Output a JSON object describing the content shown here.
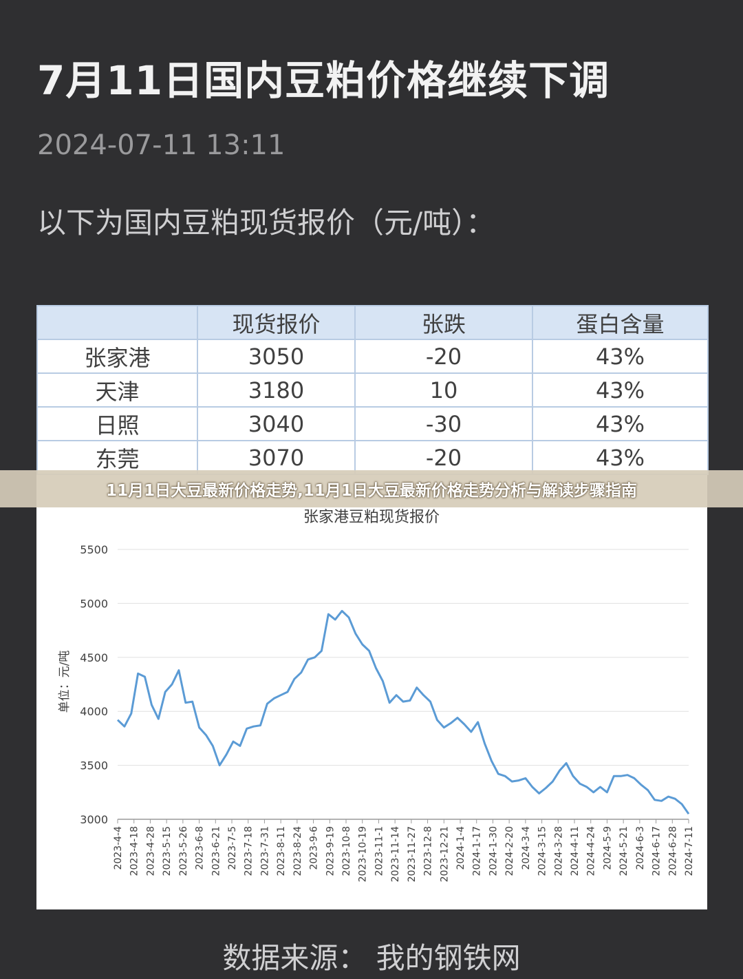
{
  "article": {
    "headline": "7月11日国内豆粕价格继续下调",
    "timestamp": "2024-07-11 13:11",
    "intro": "以下为国内豆粕现货报价（元/吨）：",
    "source": "数据来源：  我的钢铁网"
  },
  "overlay": {
    "banner": "11月1日大豆最新价格走势,11月1日大豆最新价格走势分析与解读步骤指南"
  },
  "price_table": {
    "headers": [
      "",
      "现货报价",
      "张跌",
      "蛋白含量"
    ],
    "rows": [
      [
        "张家港",
        "3050",
        "-20",
        "43%"
      ],
      [
        "天津",
        "3180",
        "10",
        "43%"
      ],
      [
        "日照",
        "3040",
        "-30",
        "43%"
      ],
      [
        "东莞",
        "3070",
        "-20",
        "43%"
      ]
    ]
  },
  "colors": {
    "line": "#5b9bd5",
    "table_header": "#d7e4f4",
    "table_border": "#b8cbe3"
  },
  "chart_data": {
    "type": "line",
    "title": "张家港豆粕现货报价",
    "ylabel": "单位：元/吨",
    "xlabel": "",
    "ylim": [
      3000,
      5500
    ],
    "yticks": [
      3000,
      3500,
      4000,
      4500,
      5000,
      5500
    ],
    "grid": true,
    "x_tick_labels": [
      "2023-4-4",
      "2023-4-18",
      "2023-4-28",
      "2023-5-15",
      "2023-5-26",
      "2023-6-8",
      "2023-6-21",
      "2023-7-5",
      "2023-7-18",
      "2023-7-31",
      "2023-8-11",
      "2023-8-24",
      "2023-9-6",
      "2023-9-19",
      "2023-10-8",
      "2023-10-19",
      "2023-11-1",
      "2023-11-14",
      "2023-11-27",
      "2023-12-8",
      "2023-12-21",
      "2024-1-4",
      "2024-1-17",
      "2024-1-30",
      "2024-2-20",
      "2024-3-4",
      "2024-3-15",
      "2024-3-28",
      "2024-4-11",
      "2024-4-24",
      "2024-5-9",
      "2024-5-21",
      "2024-6-3",
      "2024-6-17",
      "2024-6-28",
      "2024-7-11"
    ],
    "series": [
      {
        "values": [
          3920,
          3860,
          3980,
          4350,
          4320,
          4060,
          3930,
          4180,
          4250,
          4380,
          4080,
          4090,
          3850,
          3780,
          3680,
          3500,
          3600,
          3720,
          3680,
          3840,
          3860,
          3870,
          4070,
          4120,
          4150,
          4180,
          4300,
          4360,
          4480,
          4500,
          4560,
          4900,
          4850,
          4930,
          4870,
          4720,
          4620,
          4560,
          4400,
          4280,
          4080,
          4150,
          4090,
          4100,
          4220,
          4150,
          4090,
          3920,
          3850,
          3890,
          3940,
          3880,
          3810,
          3900,
          3700,
          3540,
          3420,
          3400,
          3350,
          3360,
          3380,
          3300,
          3240,
          3290,
          3350,
          3450,
          3520,
          3400,
          3330,
          3300,
          3250,
          3300,
          3250,
          3400,
          3400,
          3410,
          3380,
          3320,
          3270,
          3180,
          3170,
          3210,
          3190,
          3140,
          3050
        ]
      }
    ]
  }
}
